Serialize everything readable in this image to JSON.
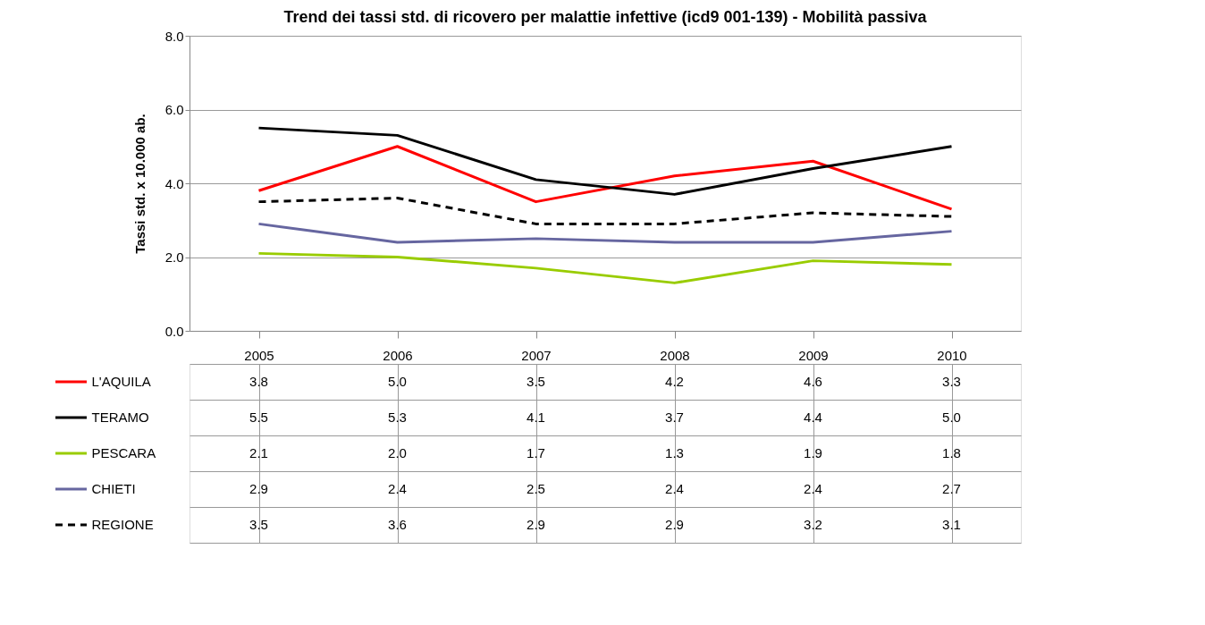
{
  "chart_data": {
    "type": "line",
    "title": "Trend dei tassi std.  di ricovero per malattie infettive (icd9 001-139) - Mobilità passiva",
    "ylabel": "Tassi std. x 10.000 ab.",
    "categories": [
      "2005",
      "2006",
      "2007",
      "2008",
      "2009",
      "2010"
    ],
    "series": [
      {
        "name": "L'AQUILA",
        "color": "#ff0000",
        "values": [
          3.8,
          5.0,
          3.5,
          4.2,
          4.6,
          3.3
        ],
        "value_labels": [
          "3.8",
          "5.0",
          "3.5",
          "4.2",
          "4.6",
          "3.3"
        ]
      },
      {
        "name": "TERAMO",
        "color": "#000000",
        "values": [
          5.5,
          5.3,
          4.1,
          3.7,
          4.4,
          5.0
        ],
        "value_labels": [
          "5.5",
          "5.3",
          "4.1",
          "3.7",
          "4.4",
          "5.0"
        ]
      },
      {
        "name": "PESCARA",
        "color": "#99cc00",
        "values": [
          2.1,
          2.0,
          1.7,
          1.3,
          1.9,
          1.8
        ],
        "value_labels": [
          "2.1",
          "2.0",
          "1.7",
          "1.3",
          "1.9",
          "1.8"
        ]
      },
      {
        "name": "CHIETI",
        "color": "#6666a0",
        "values": [
          2.9,
          2.4,
          2.5,
          2.4,
          2.4,
          2.7
        ],
        "value_labels": [
          "2.9",
          "2.4",
          "2.5",
          "2.4",
          "2.4",
          "2.7"
        ]
      },
      {
        "name": "REGIONE",
        "color": "#000000",
        "line_style": "dashed",
        "values": [
          3.5,
          3.6,
          2.9,
          2.9,
          3.2,
          3.1
        ],
        "value_labels": [
          "3.5",
          "3.6",
          "2.9",
          "2.9",
          "3.2",
          "3.1"
        ]
      }
    ],
    "ylim": [
      0,
      8
    ],
    "yticks": [
      {
        "value": 0,
        "label": "0.0"
      },
      {
        "value": 2,
        "label": "2.0"
      },
      {
        "value": 4,
        "label": "4.0"
      },
      {
        "value": 6,
        "label": "6.0"
      },
      {
        "value": 8,
        "label": "8.0"
      }
    ],
    "grid": "y",
    "marker": "none",
    "legend": "bottom"
  }
}
